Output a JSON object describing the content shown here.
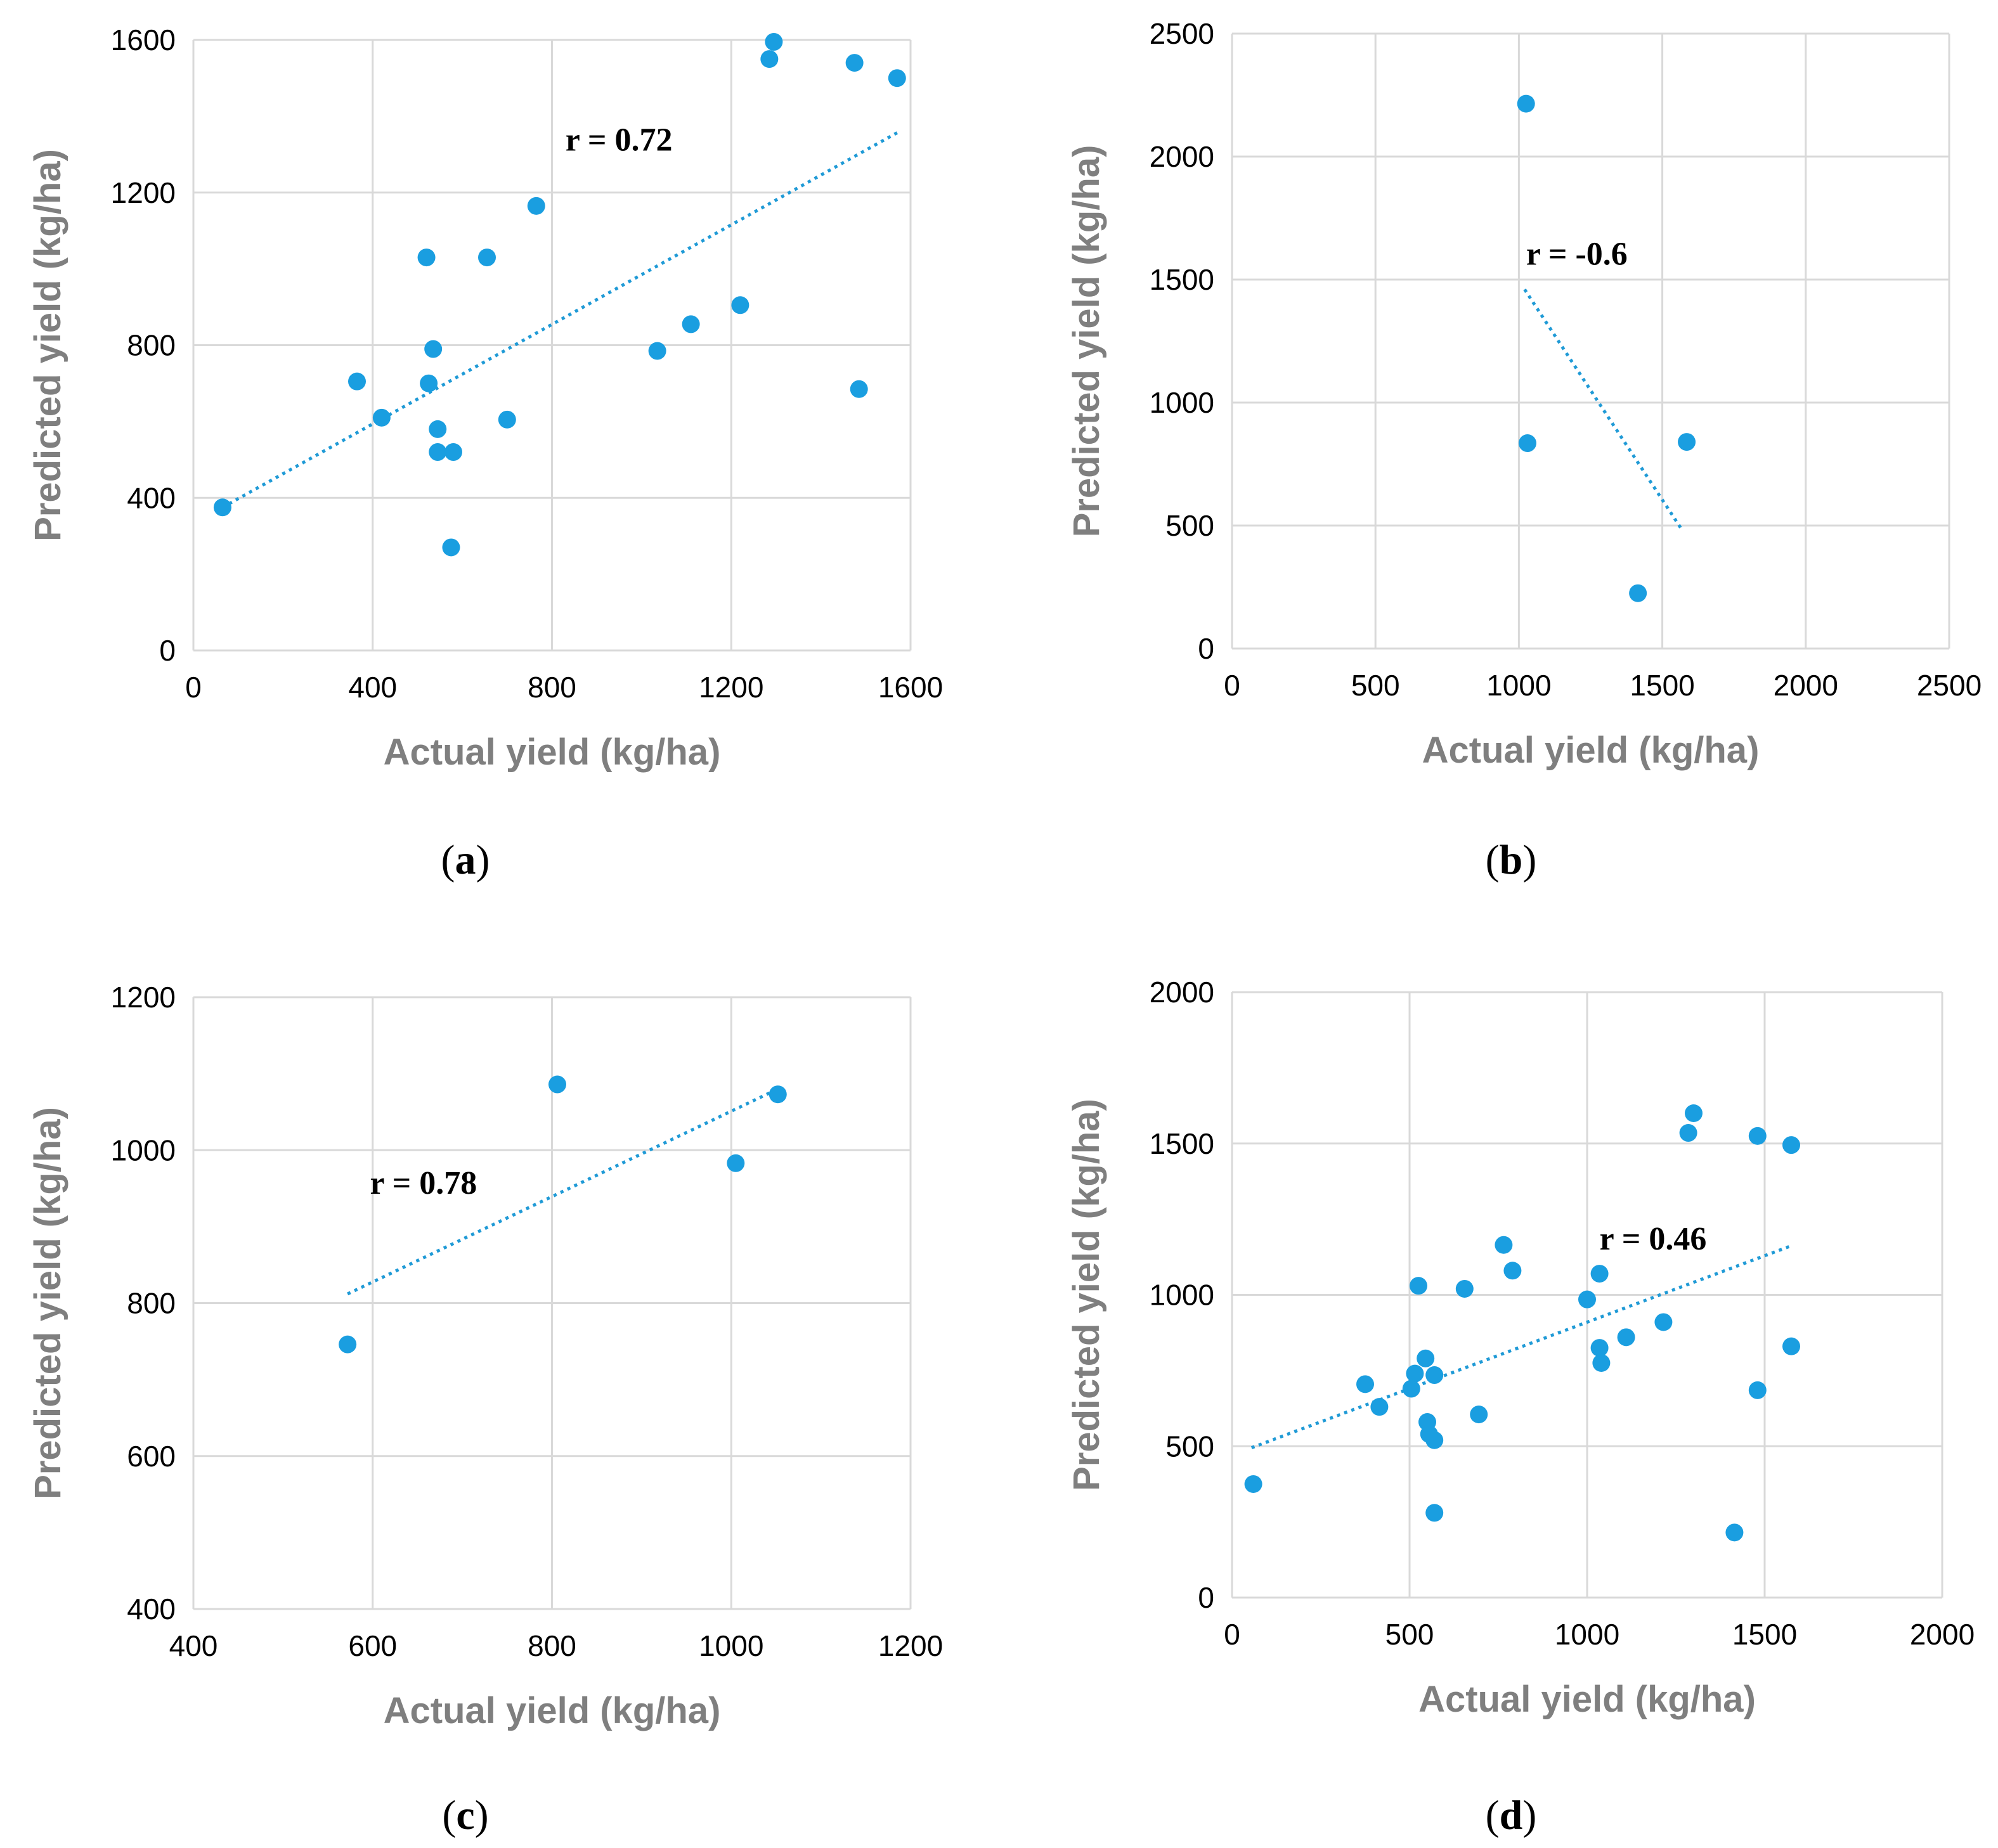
{
  "figure": {
    "point_color": "#1a9ee0",
    "trend_color": "#1f9ad6"
  },
  "chart_data": [
    {
      "id": "a",
      "type": "scatter",
      "panel_label": "a",
      "xlabel": "Actual yield (kg/ha)",
      "ylabel": "Predicted yield (kg/ha)",
      "xlim": [
        0,
        1600
      ],
      "ylim": [
        0,
        1600
      ],
      "xticks": [
        0,
        400,
        800,
        1200,
        1600
      ],
      "yticks": [
        0,
        400,
        800,
        1200,
        1600
      ],
      "grid": true,
      "annotation": "r = 0.72",
      "annotation_pos": [
        830,
        1310
      ],
      "trendline": {
        "x": [
          65,
          1575
        ],
        "y": [
          375,
          1360
        ]
      },
      "points": [
        {
          "x": 65,
          "y": 375
        },
        {
          "x": 365,
          "y": 705
        },
        {
          "x": 420,
          "y": 610
        },
        {
          "x": 520,
          "y": 1030
        },
        {
          "x": 525,
          "y": 700
        },
        {
          "x": 535,
          "y": 790
        },
        {
          "x": 545,
          "y": 580
        },
        {
          "x": 545,
          "y": 520
        },
        {
          "x": 580,
          "y": 520
        },
        {
          "x": 575,
          "y": 270
        },
        {
          "x": 655,
          "y": 1030
        },
        {
          "x": 700,
          "y": 605
        },
        {
          "x": 765,
          "y": 1165
        },
        {
          "x": 1035,
          "y": 785
        },
        {
          "x": 1110,
          "y": 855
        },
        {
          "x": 1220,
          "y": 905
        },
        {
          "x": 1285,
          "y": 1550
        },
        {
          "x": 1295,
          "y": 1595
        },
        {
          "x": 1475,
          "y": 1540
        },
        {
          "x": 1485,
          "y": 685
        },
        {
          "x": 1570,
          "y": 1500
        }
      ]
    },
    {
      "id": "b",
      "type": "scatter",
      "panel_label": "b",
      "xlabel": "Actual yield (kg/ha)",
      "ylabel": "Predicted yield (kg/ha)",
      "xlim": [
        0,
        2500
      ],
      "ylim": [
        0,
        2500
      ],
      "xticks": [
        0,
        500,
        1000,
        1500,
        2000,
        2500
      ],
      "yticks": [
        0,
        500,
        1000,
        1500,
        2000,
        2500
      ],
      "grid": true,
      "annotation": "r = -0.6",
      "annotation_pos": [
        1025,
        1560
      ],
      "trendline": {
        "x": [
          1020,
          1570
        ],
        "y": [
          1460,
          480
        ]
      },
      "points": [
        {
          "x": 1025,
          "y": 2215
        },
        {
          "x": 1030,
          "y": 835
        },
        {
          "x": 1415,
          "y": 225
        },
        {
          "x": 1585,
          "y": 840
        }
      ]
    },
    {
      "id": "c",
      "type": "scatter",
      "panel_label": "c",
      "xlabel": "Actual yield (kg/ha)",
      "ylabel": "Predicted yield (kg/ha)",
      "xlim": [
        400,
        1200
      ],
      "ylim": [
        400,
        1200
      ],
      "xticks": [
        400,
        600,
        800,
        1000,
        1200
      ],
      "yticks": [
        400,
        600,
        800,
        1000,
        1200
      ],
      "grid": true,
      "annotation": "r = 0.78",
      "annotation_pos": [
        597,
        943
      ],
      "trendline": {
        "x": [
          572,
          1052
        ],
        "y": [
          812,
          1080
        ]
      },
      "points": [
        {
          "x": 572,
          "y": 746
        },
        {
          "x": 806,
          "y": 1086
        },
        {
          "x": 1005,
          "y": 983
        },
        {
          "x": 1052,
          "y": 1073
        }
      ]
    },
    {
      "id": "d",
      "type": "scatter",
      "panel_label": "d",
      "xlabel": "Actual yield (kg/ha)",
      "ylabel": "Predicted yield (kg/ha)",
      "xlim": [
        0,
        2000
      ],
      "ylim": [
        0,
        2000
      ],
      "xticks": [
        0,
        500,
        1000,
        1500,
        2000
      ],
      "yticks": [
        0,
        500,
        1000,
        1500,
        2000
      ],
      "grid": true,
      "annotation": "r = 0.46",
      "annotation_pos": [
        1035,
        1150
      ],
      "trendline": {
        "x": [
          55,
          1570
        ],
        "y": [
          495,
          1160
        ]
      },
      "points": [
        {
          "x": 60,
          "y": 375
        },
        {
          "x": 375,
          "y": 705
        },
        {
          "x": 415,
          "y": 630
        },
        {
          "x": 505,
          "y": 690
        },
        {
          "x": 515,
          "y": 740
        },
        {
          "x": 525,
          "y": 1030
        },
        {
          "x": 545,
          "y": 790
        },
        {
          "x": 550,
          "y": 580
        },
        {
          "x": 555,
          "y": 540
        },
        {
          "x": 570,
          "y": 520
        },
        {
          "x": 570,
          "y": 735
        },
        {
          "x": 570,
          "y": 280
        },
        {
          "x": 695,
          "y": 605
        },
        {
          "x": 655,
          "y": 1020
        },
        {
          "x": 765,
          "y": 1165
        },
        {
          "x": 790,
          "y": 1080
        },
        {
          "x": 1000,
          "y": 985
        },
        {
          "x": 1035,
          "y": 1070
        },
        {
          "x": 1035,
          "y": 825
        },
        {
          "x": 1040,
          "y": 775
        },
        {
          "x": 1110,
          "y": 860
        },
        {
          "x": 1215,
          "y": 910
        },
        {
          "x": 1285,
          "y": 1535
        },
        {
          "x": 1300,
          "y": 1600
        },
        {
          "x": 1480,
          "y": 1525
        },
        {
          "x": 1480,
          "y": 685
        },
        {
          "x": 1415,
          "y": 215
        },
        {
          "x": 1575,
          "y": 1495
        },
        {
          "x": 1575,
          "y": 830
        }
      ]
    }
  ]
}
